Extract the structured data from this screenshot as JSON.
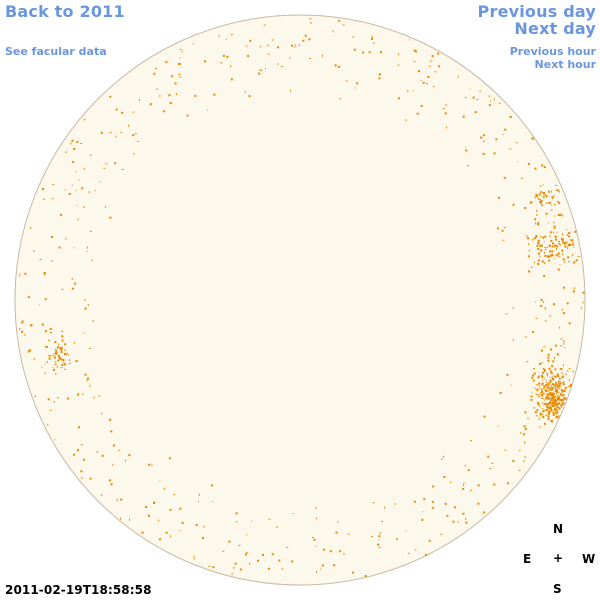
{
  "nav": {
    "back_label": "Back to 2011",
    "facular_label": "See facular data",
    "prev_day_label": "Previous day",
    "next_day_label": "Next day",
    "prev_hour_label": "Previous hour",
    "next_hour_label": "Next hour"
  },
  "compass": {
    "north": "N",
    "east": "E",
    "center": "+",
    "west": "W",
    "south": "S"
  },
  "timestamp": "2011-02-19T18:58:58",
  "colors": {
    "link": "#6a96e0",
    "disk_fill": "#fdf8ec",
    "disk_edge": "#c7b9a3",
    "facula": "#e88a00"
  }
}
